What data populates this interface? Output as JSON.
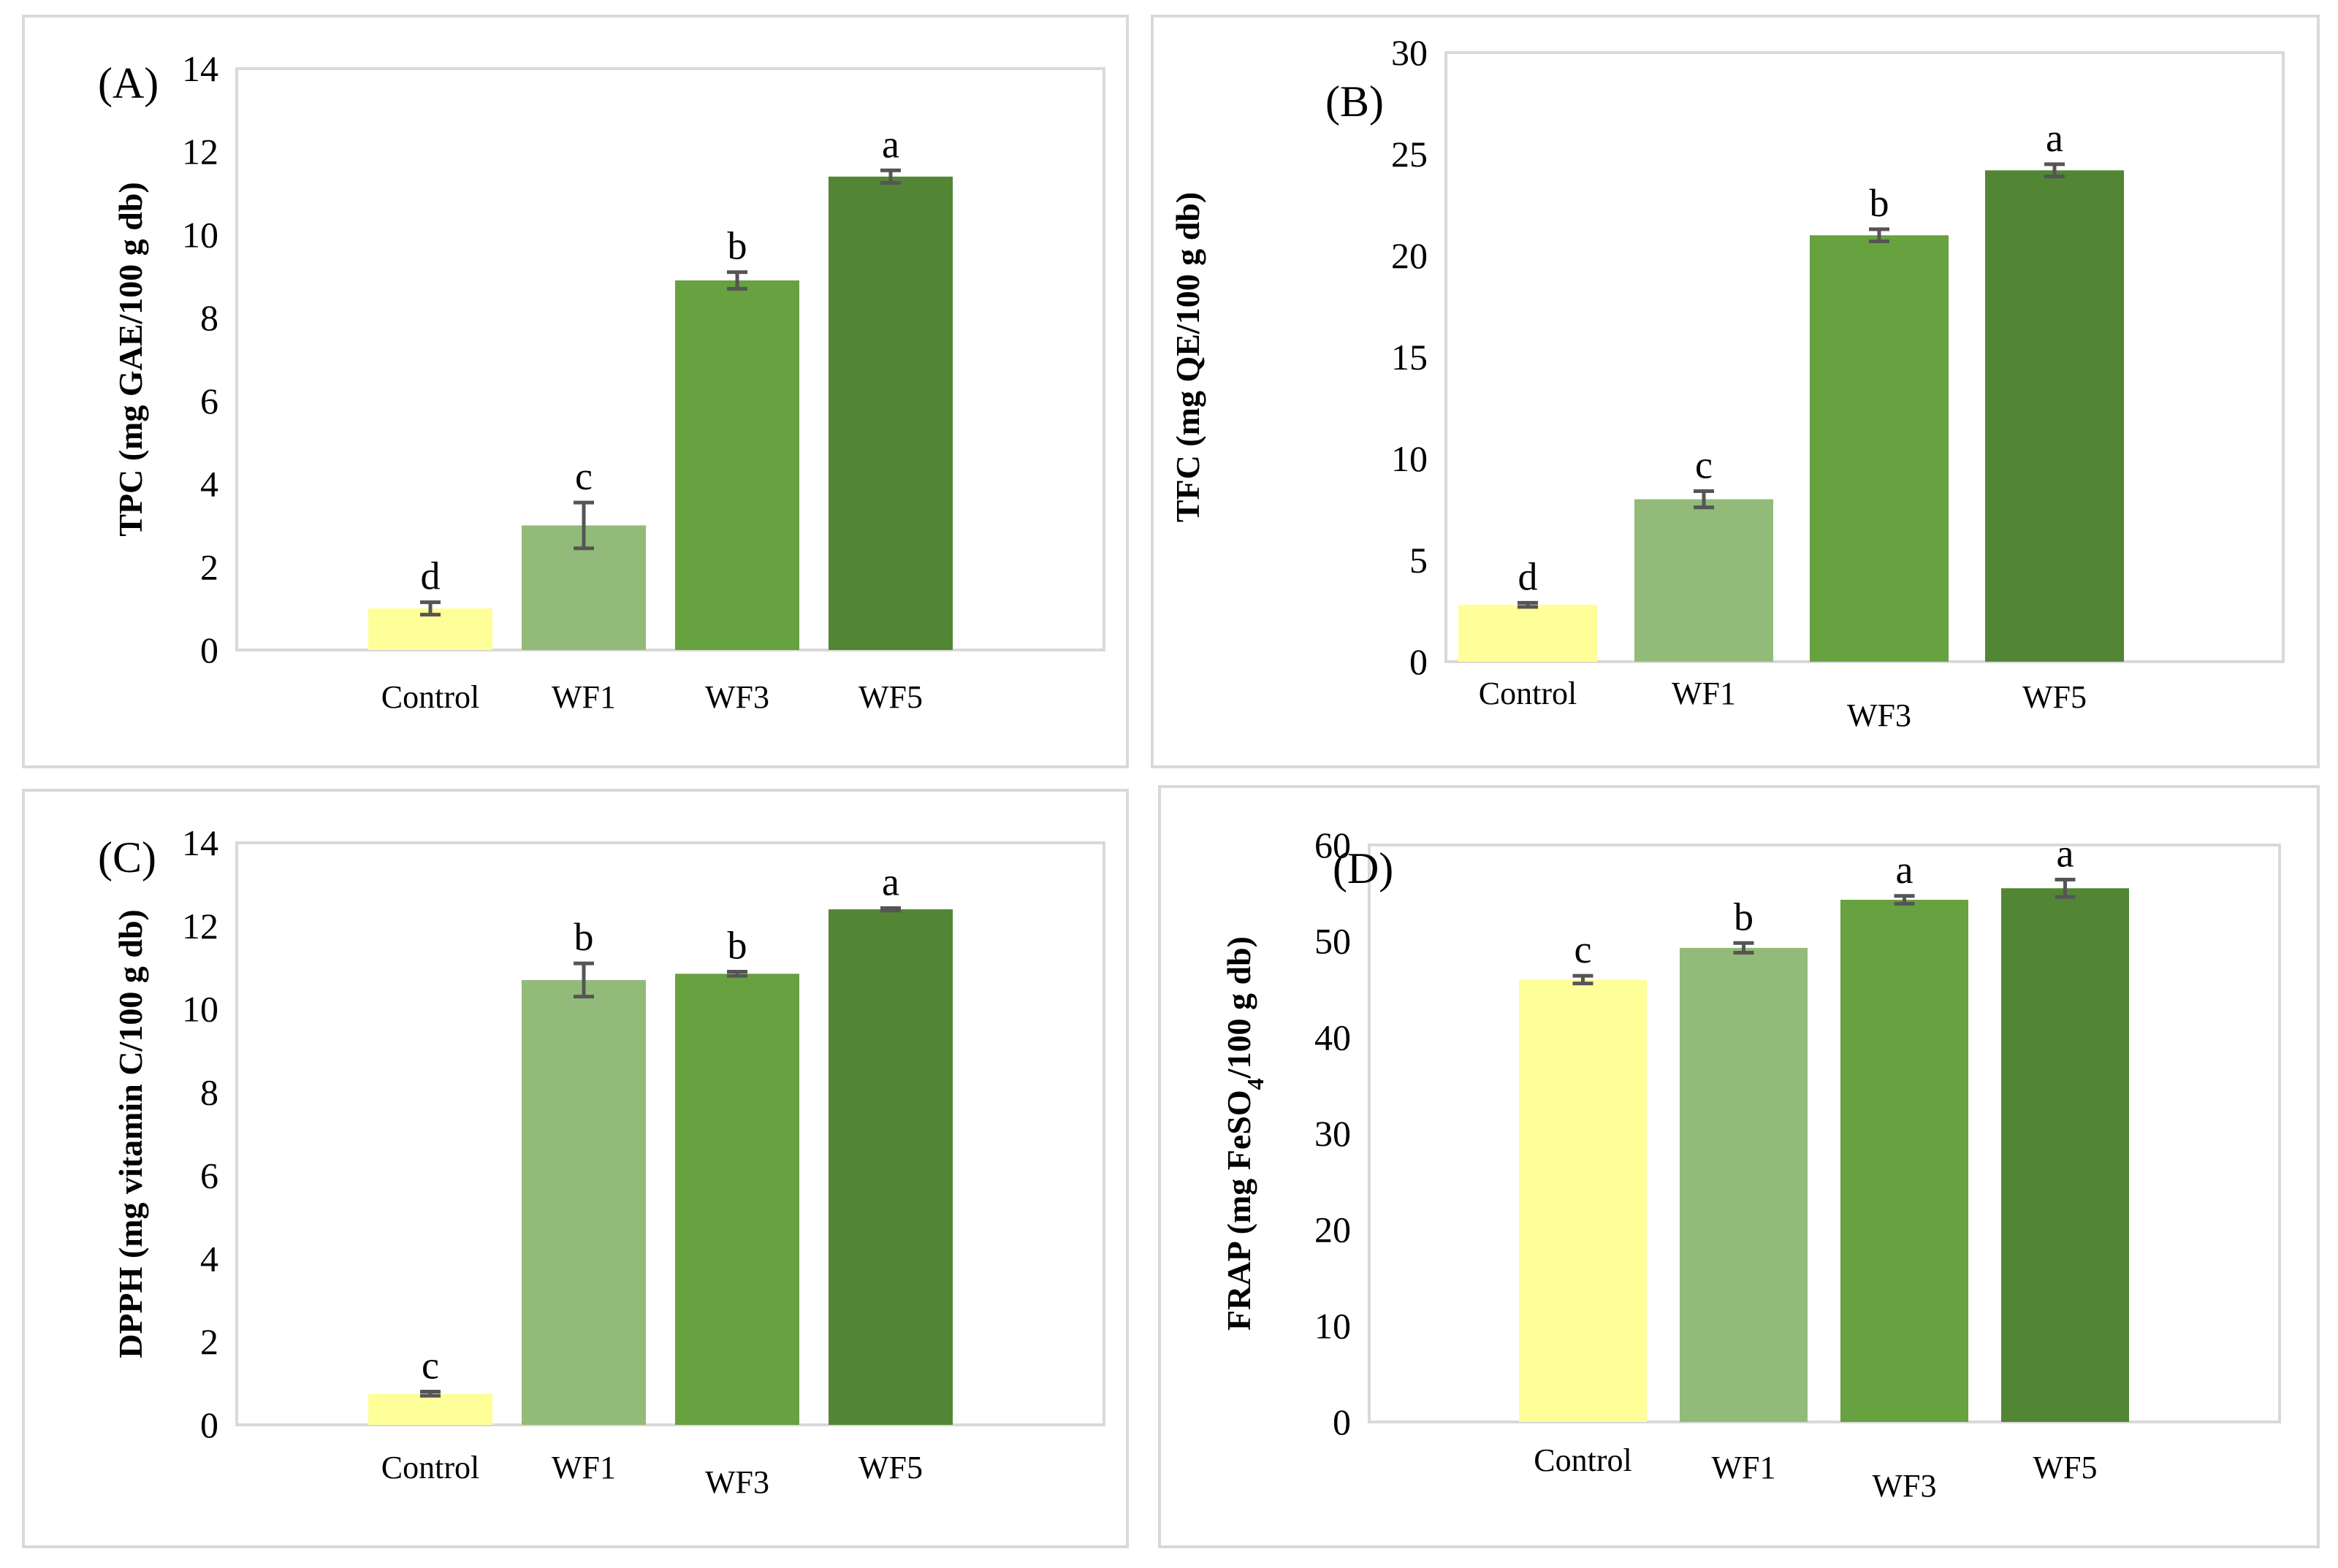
{
  "chart_data": [
    {
      "type": "bar",
      "panel_label": "(A)",
      "ylabel": "TPC (mg GAE/100 g db)",
      "categories": [
        "Control",
        "WF1",
        "WF3",
        "WF5"
      ],
      "values": [
        1.0,
        3.0,
        8.9,
        11.4
      ],
      "errors": [
        0.15,
        0.55,
        0.2,
        0.15
      ],
      "significance": [
        "d",
        "c",
        "b",
        "a"
      ],
      "ylim": [
        0,
        14
      ],
      "yticks": [
        0,
        2,
        4,
        6,
        8,
        10,
        12,
        14
      ],
      "colors": [
        "#ffff99",
        "#92bb7a",
        "#67a140",
        "#528634"
      ],
      "grid": false,
      "legend": "none"
    },
    {
      "type": "bar",
      "panel_label": "(B)",
      "ylabel": "TFC (mg QE/100 g db)",
      "categories": [
        "Control",
        "WF1",
        "WF3",
        "WF5"
      ],
      "values": [
        2.8,
        8.0,
        21.0,
        24.2
      ],
      "errors": [
        0.1,
        0.4,
        0.3,
        0.3
      ],
      "significance": [
        "d",
        "c",
        "b",
        "a"
      ],
      "ylim": [
        0,
        30
      ],
      "yticks": [
        0,
        5,
        10,
        15,
        20,
        25,
        30
      ],
      "colors": [
        "#ffff99",
        "#92bb7a",
        "#67a140",
        "#528634"
      ],
      "grid": false,
      "legend": "none"
    },
    {
      "type": "bar",
      "panel_label": "(C)",
      "ylabel": "DPPH (mg vitamin C/100 g db)",
      "categories": [
        "Control",
        "WF1",
        "WF3",
        "WF5"
      ],
      "values": [
        0.75,
        10.7,
        10.85,
        12.4
      ],
      "errors": [
        0.05,
        0.4,
        0.05,
        0.03
      ],
      "significance": [
        "c",
        "b",
        "b",
        "a"
      ],
      "ylim": [
        0,
        14
      ],
      "yticks": [
        0,
        2,
        4,
        6,
        8,
        10,
        12,
        14
      ],
      "colors": [
        "#ffff99",
        "#92bb7a",
        "#67a140",
        "#528634"
      ],
      "grid": false,
      "legend": "none"
    },
    {
      "type": "bar",
      "panel_label": "(D)",
      "ylabel_main": "FRAP (mg FeSO",
      "ylabel_sub": "4",
      "ylabel_end": "/100 g db)",
      "categories": [
        "Control",
        "WF1",
        "WF3",
        "WF5"
      ],
      "values": [
        46.0,
        49.3,
        54.3,
        55.5
      ],
      "errors": [
        0.4,
        0.5,
        0.4,
        0.9
      ],
      "significance": [
        "c",
        "b",
        "a",
        "a"
      ],
      "ylim": [
        0,
        60
      ],
      "yticks": [
        0,
        10,
        20,
        30,
        40,
        50,
        60
      ],
      "colors": [
        "#ffff99",
        "#92bb7a",
        "#67a140",
        "#528634"
      ],
      "grid": false,
      "legend": "none"
    }
  ]
}
